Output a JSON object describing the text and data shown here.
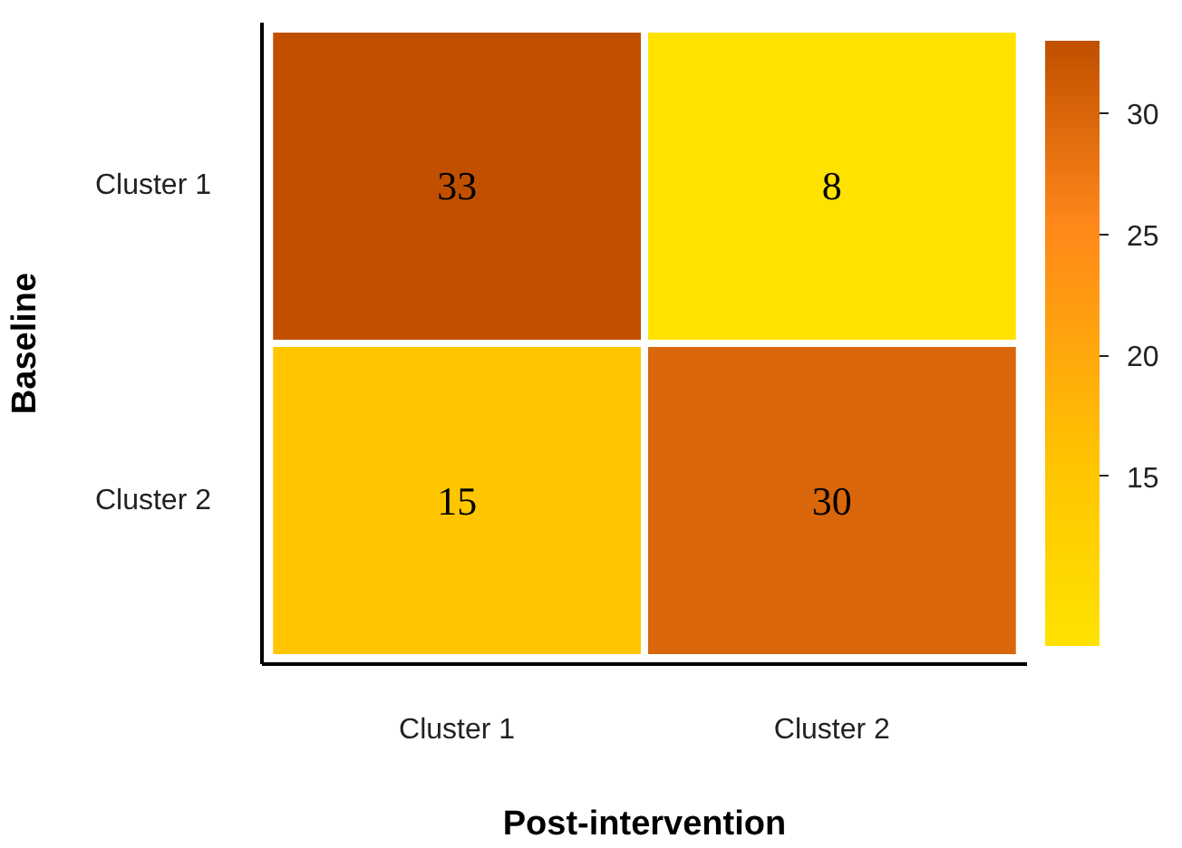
{
  "chart_data": {
    "type": "heatmap",
    "xlabel": "Post-intervention",
    "ylabel": "Baseline",
    "categories": [
      "Cluster 1",
      "Cluster 2"
    ],
    "y_categories": [
      "Cluster 1",
      "Cluster 2"
    ],
    "cells": [
      [
        33,
        8
      ],
      [
        15,
        30
      ]
    ],
    "clim": [
      8,
      33
    ],
    "cticks": [
      15,
      20,
      25,
      30
    ],
    "data_labels": true
  }
}
